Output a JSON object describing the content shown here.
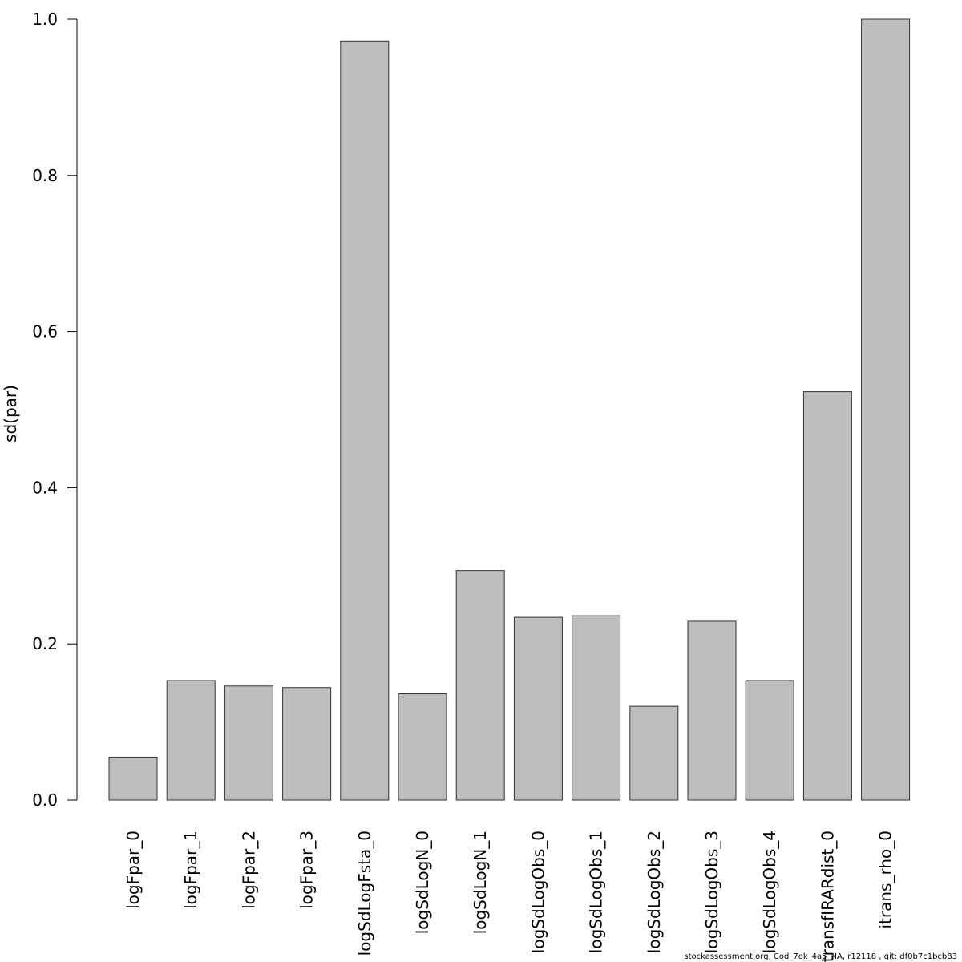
{
  "chart_data": {
    "type": "bar",
    "title": "",
    "xlabel": "",
    "ylabel": "sd(par)",
    "ylim": [
      0,
      1.0
    ],
    "yticks": [
      0.0,
      0.2,
      0.4,
      0.6,
      0.8,
      1.0
    ],
    "ytick_labels": [
      "0.0",
      "0.2",
      "0.4",
      "0.6",
      "0.8",
      "1.0"
    ],
    "grid": false,
    "bar_color": "#bebebe",
    "bar_border_color": "#333333",
    "categories": [
      "logFpar_0",
      "logFpar_1",
      "logFpar_2",
      "logFpar_3",
      "logSdLogFsta_0",
      "logSdLogN_0",
      "logSdLogN_1",
      "logSdLogObs_0",
      "logSdLogObs_1",
      "logSdLogObs_2",
      "logSdLogObs_3",
      "logSdLogObs_4",
      "transfIRARdist_0",
      "itrans_rho_0"
    ],
    "values": [
      0.055,
      0.153,
      0.146,
      0.144,
      0.972,
      0.136,
      0.294,
      0.234,
      0.236,
      0.12,
      0.229,
      0.153,
      0.523,
      1.0
    ]
  },
  "footer": {
    "text": "stockassessment.org, Cod_7ek_4a5_NA, r12118 , git: df0b7c1bcb83"
  }
}
